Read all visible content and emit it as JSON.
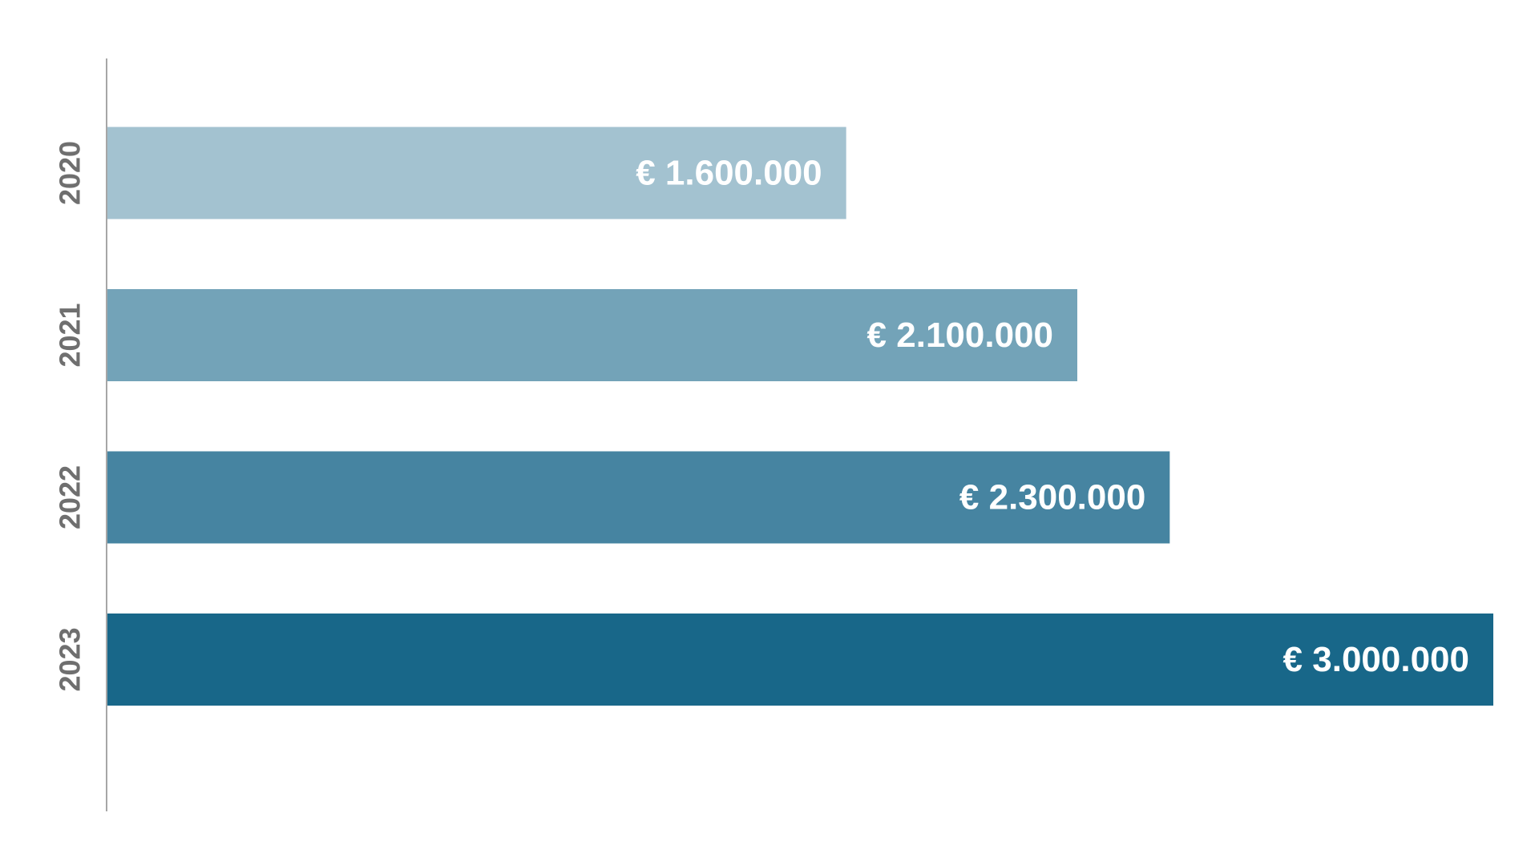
{
  "chart_data": {
    "type": "bar",
    "orientation": "horizontal",
    "categories": [
      "2020",
      "2021",
      "2022",
      "2023"
    ],
    "values": [
      1600000,
      2100000,
      2300000,
      3000000
    ],
    "value_labels": [
      "€ 1.600.000",
      "€ 2.100.000",
      "€ 2.300.000",
      "€ 3.000.000"
    ],
    "colors": [
      "#a3c2d0",
      "#73a3b8",
      "#4684a1",
      "#186789"
    ],
    "title": "",
    "xlabel": "",
    "ylabel": "",
    "xlim": [
      0,
      3000000
    ],
    "grid": false,
    "legend": "none"
  }
}
